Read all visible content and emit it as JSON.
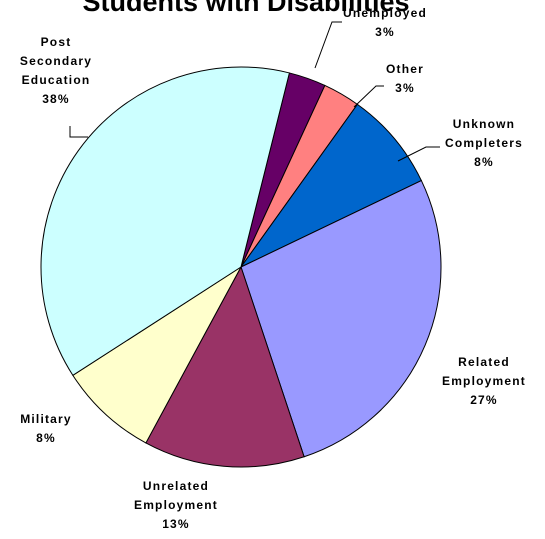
{
  "chart_data": {
    "type": "pie",
    "title": "Students with Disabilities",
    "slices": [
      {
        "name": "Unemployed",
        "lines": [
          "Unemployed",
          "3%"
        ],
        "value": 3,
        "color": "#660066"
      },
      {
        "name": "Other",
        "lines": [
          "Other",
          "3%"
        ],
        "value": 3,
        "color": "#FF8080"
      },
      {
        "name": "Unknown Completers",
        "lines": [
          "Unknown",
          "Completers",
          "8%"
        ],
        "value": 8,
        "color": "#0066CC"
      },
      {
        "name": "Related Employment",
        "lines": [
          "Related",
          "Employment",
          "27%"
        ],
        "value": 27,
        "color": "#9999FF"
      },
      {
        "name": "Unrelated Employment",
        "lines": [
          "Unrelated",
          "Employment",
          "13%"
        ],
        "value": 13,
        "color": "#993366"
      },
      {
        "name": "Military",
        "lines": [
          "Military",
          "8%"
        ],
        "value": 8,
        "color": "#FFFFCC"
      },
      {
        "name": "Post Secondary Education",
        "lines": [
          "Post",
          "Secondary",
          "Education",
          "38%"
        ],
        "value": 38,
        "color": "#CCFFFF"
      }
    ]
  }
}
